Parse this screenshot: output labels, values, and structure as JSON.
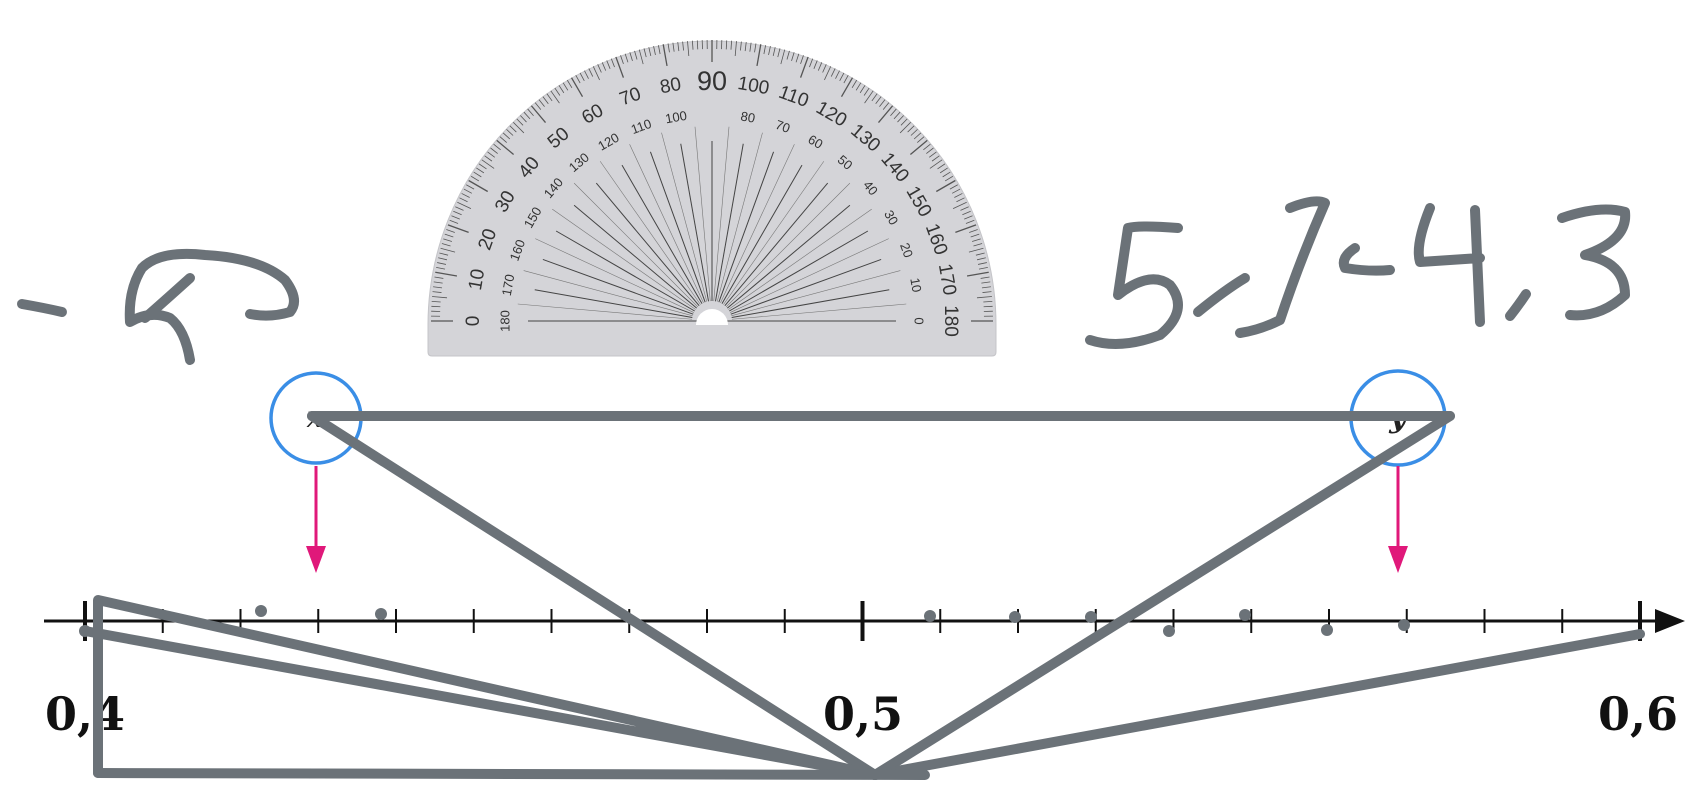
{
  "number_line": {
    "label_left": "0,4",
    "label_mid": "0,5",
    "label_right": "0,6"
  },
  "variables": {
    "x_label": "x",
    "y_label": "y"
  },
  "protractor": {
    "center_label": "90",
    "outer_labels": [
      "0",
      "10",
      "20",
      "30",
      "40",
      "50",
      "60",
      "70",
      "80",
      "90",
      "100",
      "110",
      "120",
      "130",
      "140",
      "150",
      "160",
      "170",
      "180"
    ],
    "inner_labels": [
      "180",
      "170",
      "160",
      "150",
      "140",
      "130",
      "120",
      "110",
      "100",
      "90",
      "80",
      "70",
      "60",
      "50",
      "40",
      "30",
      "20",
      "10",
      "0"
    ]
  },
  "colors": {
    "ink": "#6b7278",
    "circle": "#3a8ee6",
    "arrow": "#e0187a",
    "axis": "#111111",
    "protractor_fill": "#d4d4d8"
  }
}
